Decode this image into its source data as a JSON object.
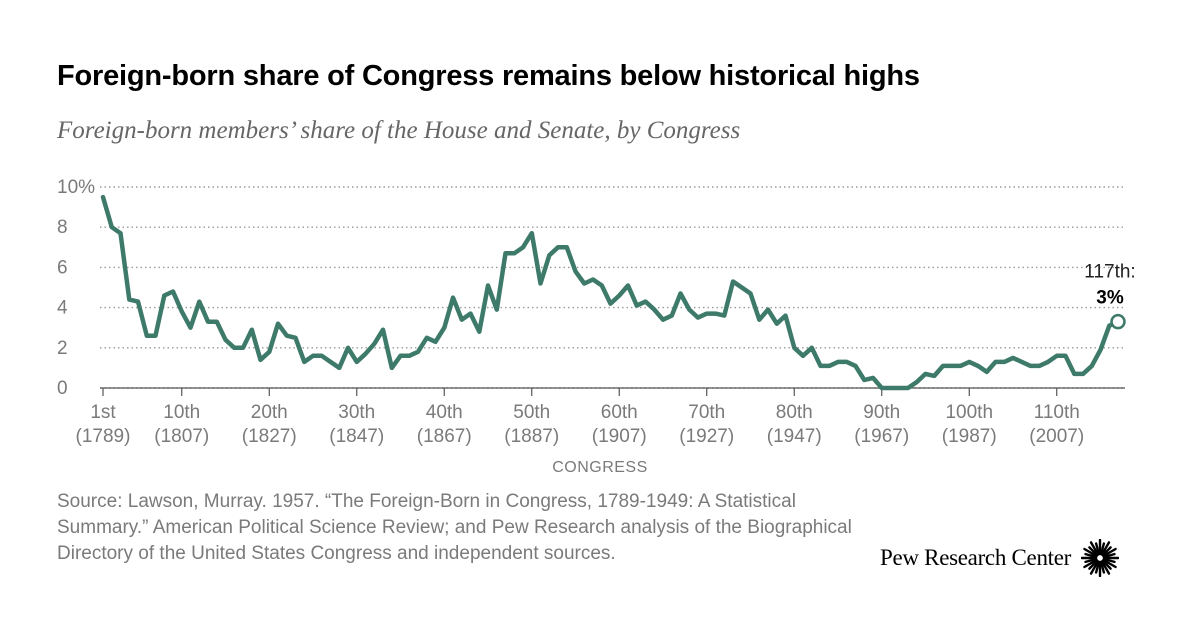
{
  "title": "Foreign-born share of Congress remains below historical highs",
  "subtitle": "Foreign-born members’ share of the House and Senate, by Congress",
  "source": "Source: Lawson, Murray. 1957. “The Foreign-Born in Congress, 1789-1949: A Statistical Summary.” American Political Science Review; and Pew Research analysis of the Biographical Directory of the United States Congress and independent sources.",
  "brand": "Pew Research Center",
  "colors": {
    "line": "#3e7a6a",
    "grid": "#9a9a9a",
    "axis_text": "#7a7a7a"
  },
  "chart_data": {
    "type": "line",
    "title": "Foreign-born share of Congress remains below historical highs",
    "subtitle": "Foreign-born members’ share of the House and Senate, by Congress",
    "xlabel": "CONGRESS",
    "ylabel": "",
    "xlim": [
      1,
      117
    ],
    "ylim": [
      0,
      10
    ],
    "grid": true,
    "y_ticks": [
      {
        "value": 10,
        "label": "10%"
      },
      {
        "value": 8,
        "label": "8"
      },
      {
        "value": 6,
        "label": "6"
      },
      {
        "value": 4,
        "label": "4"
      },
      {
        "value": 2,
        "label": "2"
      },
      {
        "value": 0,
        "label": "0"
      }
    ],
    "x_ticks": [
      {
        "value": 1,
        "label": "1st",
        "year": "(1789)"
      },
      {
        "value": 10,
        "label": "10th",
        "year": "(1807)"
      },
      {
        "value": 20,
        "label": "20th",
        "year": "(1827)"
      },
      {
        "value": 30,
        "label": "30th",
        "year": "(1847)"
      },
      {
        "value": 40,
        "label": "40th",
        "year": "(1867)"
      },
      {
        "value": 50,
        "label": "50th",
        "year": "(1887)"
      },
      {
        "value": 60,
        "label": "60th",
        "year": "(1907)"
      },
      {
        "value": 70,
        "label": "70th",
        "year": "(1927)"
      },
      {
        "value": 80,
        "label": "80th",
        "year": "(1947)"
      },
      {
        "value": 90,
        "label": "90th",
        "year": "(1967)"
      },
      {
        "value": 100,
        "label": "100th",
        "year": "(1987)"
      },
      {
        "value": 110,
        "label": "110th",
        "year": "(2007)"
      }
    ],
    "series": [
      {
        "x": [
          1,
          2,
          3,
          4,
          5,
          6,
          7,
          8,
          9,
          10,
          11,
          12,
          13,
          14,
          15,
          16,
          17,
          18,
          19,
          20,
          21,
          22,
          23,
          24,
          25,
          26,
          27,
          28,
          29,
          30,
          31,
          32,
          33,
          34,
          35,
          36,
          37,
          38,
          39,
          40,
          41,
          42,
          43,
          44,
          45,
          46,
          47,
          48,
          49,
          50,
          51,
          52,
          53,
          54,
          55,
          56,
          57,
          58,
          59,
          60,
          61,
          62,
          63,
          64,
          65,
          66,
          67,
          68,
          69,
          70,
          71,
          72,
          73,
          74,
          75,
          76,
          77,
          78,
          79,
          80,
          81,
          82,
          83,
          84,
          85,
          86,
          87,
          88,
          89,
          90,
          91,
          92,
          93,
          94,
          95,
          96,
          97,
          98,
          99,
          100,
          101,
          102,
          103,
          104,
          105,
          106,
          107,
          108,
          109,
          110,
          111,
          112,
          113,
          114,
          115,
          116,
          117
        ],
        "values": [
          9.5,
          8.0,
          7.7,
          4.4,
          4.3,
          2.6,
          2.6,
          4.6,
          4.8,
          3.8,
          3.0,
          4.3,
          3.3,
          3.3,
          2.4,
          2.0,
          2.0,
          2.9,
          1.4,
          1.8,
          3.2,
          2.6,
          2.5,
          1.3,
          1.6,
          1.6,
          1.3,
          1.0,
          2.0,
          1.3,
          1.7,
          2.2,
          2.9,
          1.0,
          1.6,
          1.6,
          1.8,
          2.5,
          2.3,
          3.0,
          4.5,
          3.4,
          3.7,
          2.8,
          5.1,
          3.9,
          6.7,
          6.7,
          7.0,
          7.7,
          5.2,
          6.6,
          7.0,
          7.0,
          5.8,
          5.2,
          5.4,
          5.1,
          4.2,
          4.6,
          5.1,
          4.1,
          4.3,
          3.9,
          3.4,
          3.6,
          4.7,
          3.9,
          3.5,
          3.7,
          3.7,
          3.6,
          5.3,
          5.0,
          4.7,
          3.4,
          3.9,
          3.2,
          3.6,
          2.0,
          1.6,
          2.0,
          1.1,
          1.1,
          1.3,
          1.3,
          1.1,
          0.4,
          0.5,
          0.0,
          0.0,
          0.0,
          0.0,
          0.3,
          0.7,
          0.6,
          1.1,
          1.1,
          1.1,
          1.3,
          1.1,
          0.8,
          1.3,
          1.3,
          1.5,
          1.3,
          1.1,
          1.1,
          1.3,
          1.6,
          1.6,
          0.7,
          0.7,
          1.1,
          1.9,
          3.1,
          3.3
        ]
      }
    ],
    "annotation": {
      "label": "117th:",
      "value_label": "3%",
      "x": 117,
      "y": 3.3
    }
  }
}
